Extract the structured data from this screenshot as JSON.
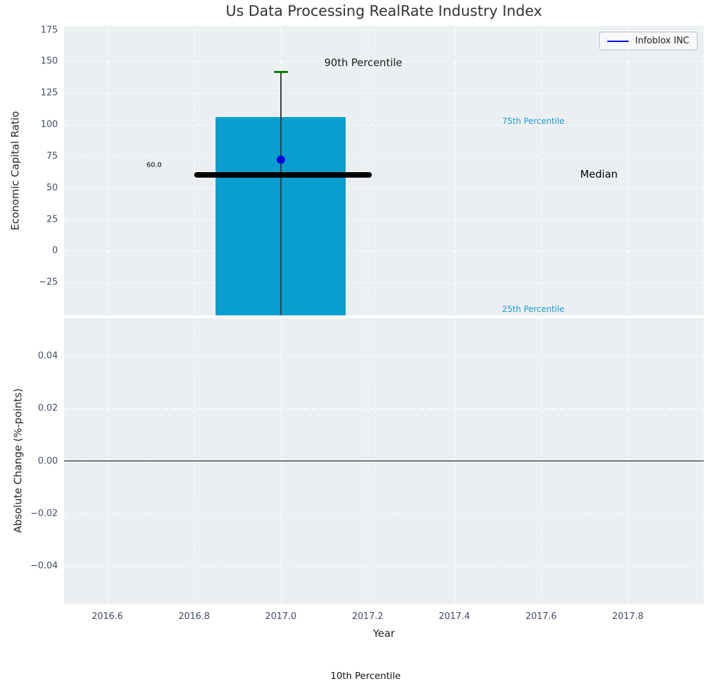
{
  "title": "Us Data Processing RealRate Industry Index",
  "legend": {
    "label": "Infoblox INC",
    "line_color": "#0000dd"
  },
  "colors": {
    "figure_bg": "#ffffff",
    "axes_bg": "#eceff1",
    "grid": "#ffffff",
    "bar": "#089fce",
    "percentile_label": "#169bd5",
    "tick_label": "#3d4c63",
    "median_line": "#000000",
    "whisker": "#3c3c3c",
    "whisker_cap": "#008000",
    "marker": "#0000dd",
    "zero_line": "#000000",
    "title": "#333333"
  },
  "figure_text": {
    "bottom_annotation": "10th Percentile"
  },
  "chart_data": [
    {
      "type": "bar",
      "subplot": "top",
      "title": "Us Data Processing RealRate Industry Index",
      "ylabel": "Economic Capital Ratio",
      "xlabel": "",
      "xlim": [
        2016.5,
        2017.975
      ],
      "ylim": [
        -51,
        178
      ],
      "ytick_values": [
        175,
        150,
        125,
        100,
        75,
        50,
        25,
        0,
        -25
      ],
      "ytick_labels": [
        "175",
        "150",
        "125",
        "100",
        "75",
        "50",
        "25",
        "0",
        "−25"
      ],
      "xgrid_values": [
        2016.6,
        2016.8,
        2017.0,
        2017.2,
        2017.4,
        2017.6,
        2017.8
      ],
      "grid": true,
      "legend_position": "upper right",
      "series": {
        "company": "Infoblox INC",
        "year": 2017.0,
        "company_marker_value": 72,
        "median_value": 60.0,
        "median_label": "60.0",
        "percentile_75_bar_top": 106,
        "percentile_90_whisker_top": 142,
        "bar_x_range": [
          2016.85,
          2017.15
        ],
        "median_x_range": [
          2016.8,
          2017.21
        ],
        "bar_bottom_clipped": true,
        "whisker_bottom_clipped": true
      },
      "annotations": [
        {
          "text": "90th Percentile",
          "x": 2017.1,
          "y": 149,
          "ha": "left",
          "color": "#1a1a1a",
          "size": 15
        },
        {
          "text": "75th Percentile",
          "x": 2017.51,
          "y": 103,
          "ha": "left",
          "color": "#169bd5",
          "size": 12
        },
        {
          "text": "Median",
          "x": 2017.69,
          "y": 61,
          "ha": "left",
          "color": "#000000",
          "size": 15
        },
        {
          "text": "60.0",
          "x": 2016.69,
          "y": 68,
          "ha": "left",
          "color": "#000000",
          "size": 10
        },
        {
          "text": "25th Percentile",
          "x": 2017.51,
          "y": -46,
          "ha": "left",
          "color": "#169bd5",
          "size": 12
        }
      ]
    },
    {
      "type": "line",
      "subplot": "bottom",
      "title": "",
      "ylabel": "Absolute Change (%-points)",
      "xlabel": "Year",
      "xlim": [
        2016.5,
        2017.975
      ],
      "ylim": [
        -0.0545,
        0.0545
      ],
      "ytick_values": [
        0.04,
        0.02,
        0.0,
        -0.02,
        -0.04
      ],
      "ytick_labels": [
        "0.04",
        "0.02",
        "0.00",
        "−0.02",
        "−0.04"
      ],
      "xtick_values": [
        2016.6,
        2016.8,
        2017.0,
        2017.2,
        2017.4,
        2017.6,
        2017.8
      ],
      "xtick_labels": [
        "2016.6",
        "2016.8",
        "2017.0",
        "2017.2",
        "2017.4",
        "2017.6",
        "2017.8"
      ],
      "grid": true,
      "zero_line": 0.0,
      "values": []
    }
  ]
}
